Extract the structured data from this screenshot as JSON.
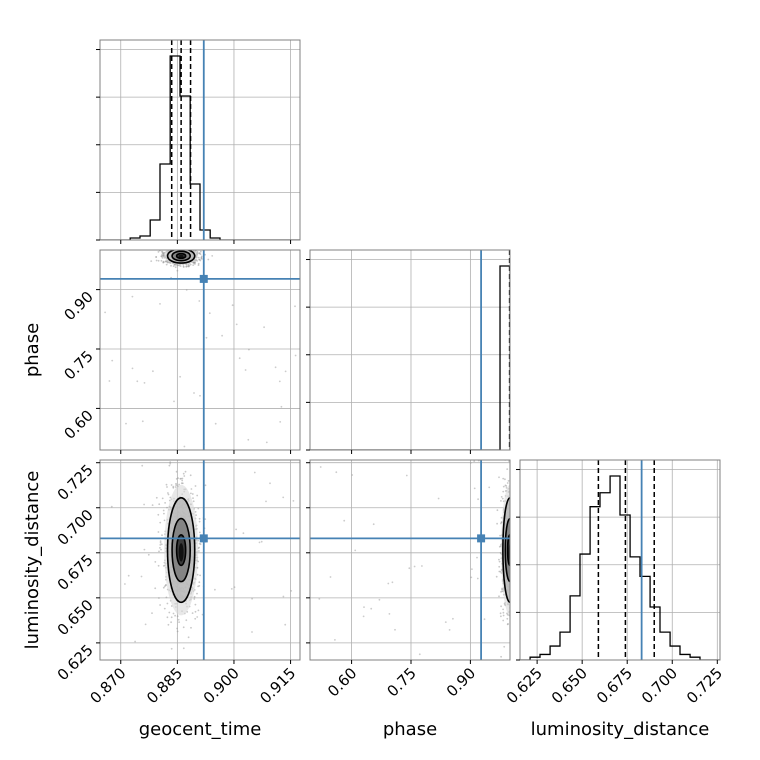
{
  "chart_data": {
    "type": "corner",
    "parameters": [
      "geocent_time",
      "phase",
      "luminosity_distance"
    ],
    "truths": {
      "geocent_time": 0.892,
      "phase": 0.927,
      "luminosity_distance": 0.683
    },
    "colors": {
      "truth": "#4682b4",
      "hist": "#000000",
      "grid": "#b0b0b0",
      "scatter": "#9a9a9a"
    },
    "grid": true,
    "axes": {
      "geocent_time": {
        "label": "geocent_time",
        "range": [
          0.8645,
          0.9175
        ],
        "ticks": [
          0.87,
          0.885,
          0.9,
          0.915
        ],
        "tick_labels": [
          "0.870",
          "0.885",
          "0.900",
          "0.915"
        ],
        "quantiles": [
          0.8835,
          0.886,
          0.8885
        ]
      },
      "phase": {
        "label": "phase",
        "range": [
          0.495,
          1.0
        ],
        "ticks": [
          0.6,
          0.75,
          0.9
        ],
        "tick_labels": [
          "0.60",
          "0.75",
          "0.90"
        ],
        "quantiles": [
          0.999
        ]
      },
      "luminosity_distance": {
        "label": "luminosity_distance",
        "range": [
          0.6155,
          0.7265
        ],
        "ticks": [
          0.625,
          0.65,
          0.675,
          0.7,
          0.725
        ],
        "tick_labels": [
          "0.625",
          "0.650",
          "0.675",
          "0.700",
          "0.725"
        ],
        "quantiles": [
          0.659,
          0.674,
          0.69
        ]
      }
    },
    "histograms": {
      "geocent_time": {
        "bin_edges": [
          0.8645,
          0.8672,
          0.8698,
          0.8725,
          0.8751,
          0.8778,
          0.8804,
          0.8831,
          0.8857,
          0.8884,
          0.891,
          0.8937,
          0.8963,
          0.899,
          0.9016,
          0.9043,
          0.9069,
          0.9096,
          0.9122,
          0.9149,
          0.9175
        ],
        "counts": [
          0,
          0,
          0,
          1,
          2,
          10,
          38,
          92,
          72,
          28,
          5,
          1,
          0,
          0,
          0,
          0,
          0,
          0,
          0,
          0
        ]
      },
      "phase": {
        "bin_edges": [
          0.495,
          0.5203,
          0.5455,
          0.5708,
          0.596,
          0.6213,
          0.6465,
          0.6718,
          0.697,
          0.7223,
          0.7475,
          0.7728,
          0.798,
          0.8233,
          0.8485,
          0.8738,
          0.899,
          0.9243,
          0.9495,
          0.9748,
          1.0
        ],
        "counts": [
          0,
          0,
          0,
          0,
          0,
          0,
          0,
          0,
          0,
          0,
          0,
          0,
          0,
          0,
          0,
          0,
          0,
          0,
          0,
          100
        ]
      },
      "luminosity_distance": {
        "bin_edges": [
          0.6155,
          0.6211,
          0.6266,
          0.6322,
          0.6377,
          0.6433,
          0.6488,
          0.6544,
          0.6599,
          0.6655,
          0.671,
          0.6766,
          0.6821,
          0.6877,
          0.6932,
          0.6988,
          0.7043,
          0.7099,
          0.7154,
          0.721,
          0.7265
        ],
        "counts": [
          0,
          1,
          2,
          5,
          10,
          23,
          38,
          55,
          60,
          66,
          52,
          37,
          30,
          19,
          10,
          5,
          2,
          1,
          0,
          0
        ]
      }
    },
    "contours_2d": {
      "luminosity_distance_vs_geocent_time": {
        "center": [
          0.886,
          0.6765
        ],
        "levels_sigma_x": [
          0.0012,
          0.0024,
          0.0036
        ],
        "levels_sigma_y": [
          0.0085,
          0.0175,
          0.029
        ]
      },
      "phase_vs_geocent_time": {
        "center": [
          0.886,
          0.985
        ],
        "levels_sigma_x": [
          0.0012,
          0.0024,
          0.0036
        ],
        "levels_sigma_y": [
          0.006,
          0.012,
          0.018
        ]
      },
      "luminosity_distance_vs_phase": {
        "center": [
          1.0,
          0.6765
        ],
        "levels_sigma_x": [
          0.006,
          0.012,
          0.018
        ],
        "levels_sigma_y": [
          0.0085,
          0.0175,
          0.029
        ]
      }
    }
  }
}
